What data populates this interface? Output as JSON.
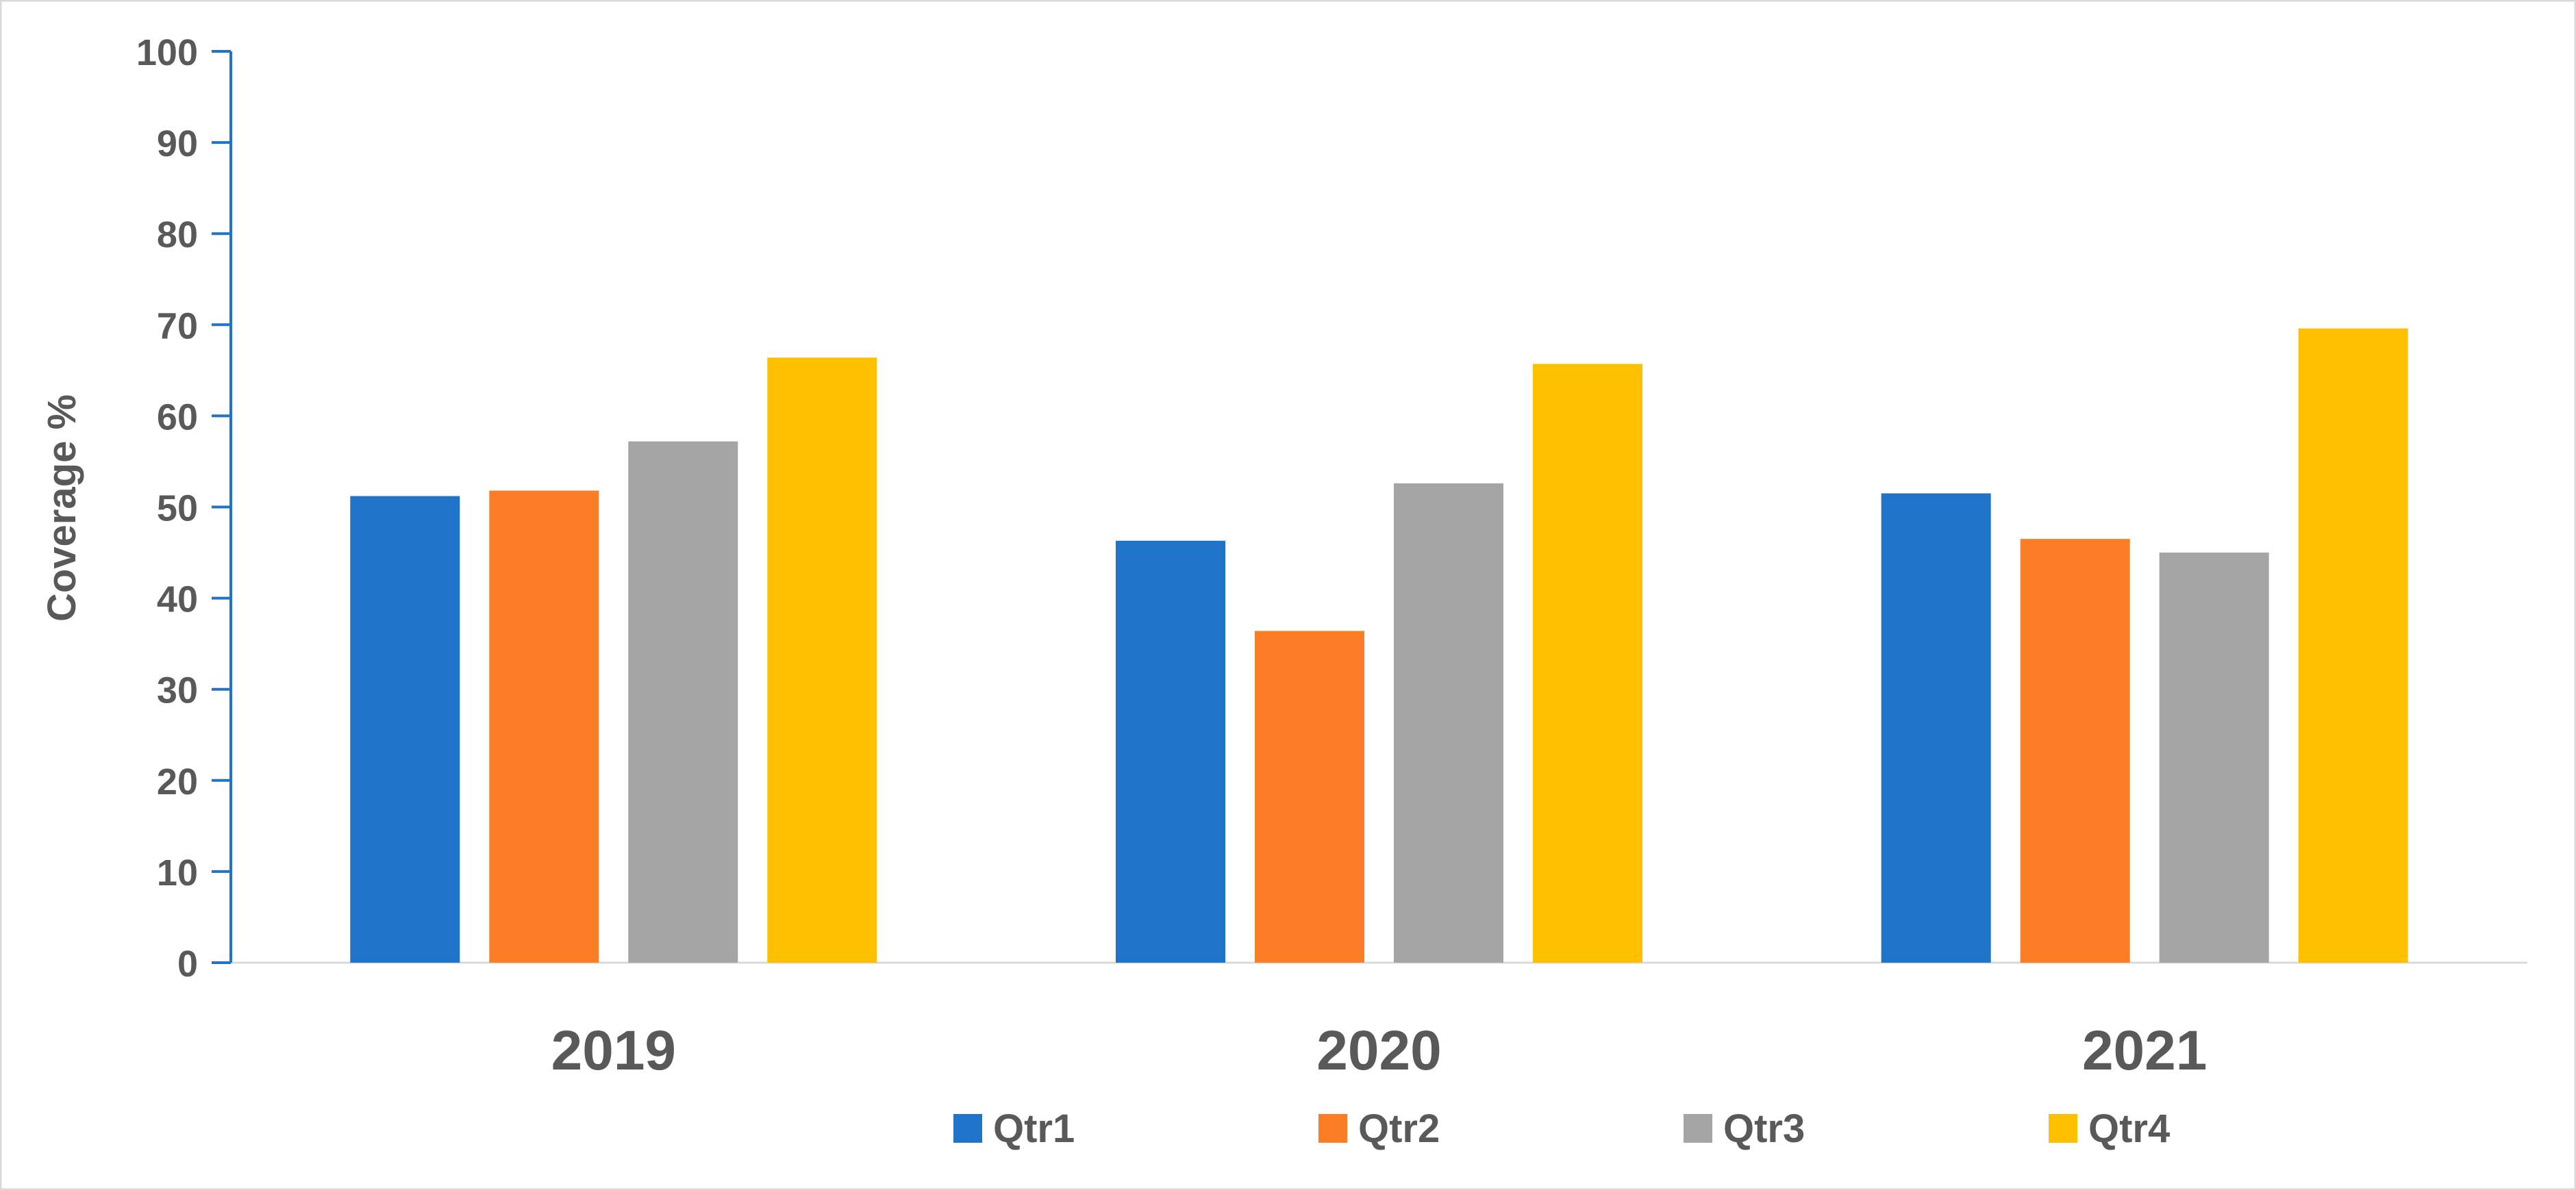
{
  "chart_data": {
    "type": "bar",
    "title": "",
    "xlabel": "",
    "ylabel": "Coverage %",
    "ylim": [
      0,
      100
    ],
    "yticks": [
      0,
      10,
      20,
      30,
      40,
      50,
      60,
      70,
      80,
      90,
      100
    ],
    "categories": [
      "2019",
      "2020",
      "2021"
    ],
    "series": [
      {
        "name": "Qtr1",
        "color": "#1F73C8",
        "values": [
          51.2,
          46.3,
          51.5
        ]
      },
      {
        "name": "Qtr2",
        "color": "#FB7D25",
        "values": [
          51.8,
          36.4,
          46.5
        ]
      },
      {
        "name": "Qtr3",
        "color": "#A5A5A5",
        "values": [
          57.2,
          52.6,
          45.0
        ]
      },
      {
        "name": "Qtr4",
        "color": "#FFC000",
        "values": [
          66.4,
          65.7,
          69.6
        ]
      }
    ],
    "grid": false,
    "legend_position": "bottom-center",
    "axis_color": "#1F73C8",
    "text_color": "#595959"
  }
}
